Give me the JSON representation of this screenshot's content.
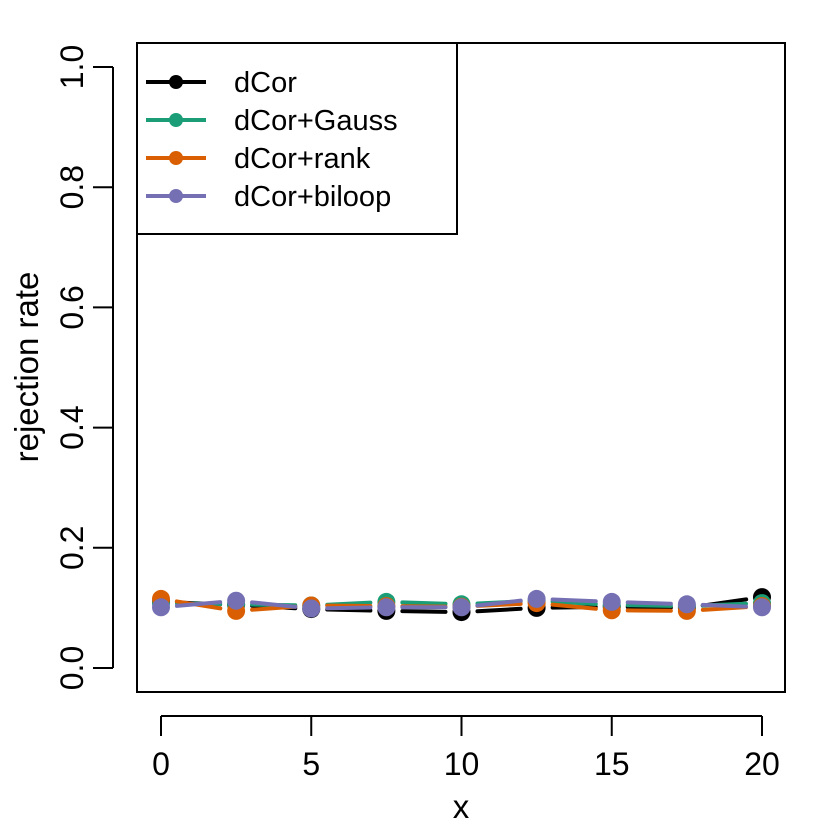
{
  "chart_data": {
    "type": "line",
    "title": "",
    "xlabel": "x",
    "ylabel": "rejection rate",
    "xlim": [
      0,
      20
    ],
    "ylim": [
      0,
      1
    ],
    "x": [
      0,
      2.5,
      5,
      7.5,
      10,
      12.5,
      15,
      17.5,
      20
    ],
    "xticks": [
      0,
      5,
      10,
      15,
      20
    ],
    "xtick_labels": [
      "0",
      "5",
      "10",
      "15",
      "20"
    ],
    "yticks": [
      0,
      0.2,
      0.4,
      0.6,
      0.8,
      1.0
    ],
    "ytick_labels": [
      "0.0",
      "0.2",
      "0.4",
      "0.6",
      "0.8",
      "1.0"
    ],
    "grid": false,
    "legend_position": "top-left",
    "series": [
      {
        "name": "dCor",
        "color": "#000000",
        "values": [
          0.11,
          0.105,
          0.098,
          0.095,
          0.093,
          0.1,
          0.102,
          0.1,
          0.118
        ]
      },
      {
        "name": "dCor+Gauss",
        "color": "#1b9e77",
        "values": [
          0.108,
          0.106,
          0.104,
          0.11,
          0.106,
          0.112,
          0.105,
          0.103,
          0.108
        ]
      },
      {
        "name": "dCor+rank",
        "color": "#d95f02",
        "values": [
          0.115,
          0.095,
          0.104,
          0.103,
          0.102,
          0.108,
          0.096,
          0.095,
          0.103
        ]
      },
      {
        "name": "dCor+biloop",
        "color": "#7570b3",
        "values": [
          0.101,
          0.112,
          0.099,
          0.101,
          0.101,
          0.115,
          0.11,
          0.106,
          0.101
        ]
      }
    ]
  }
}
